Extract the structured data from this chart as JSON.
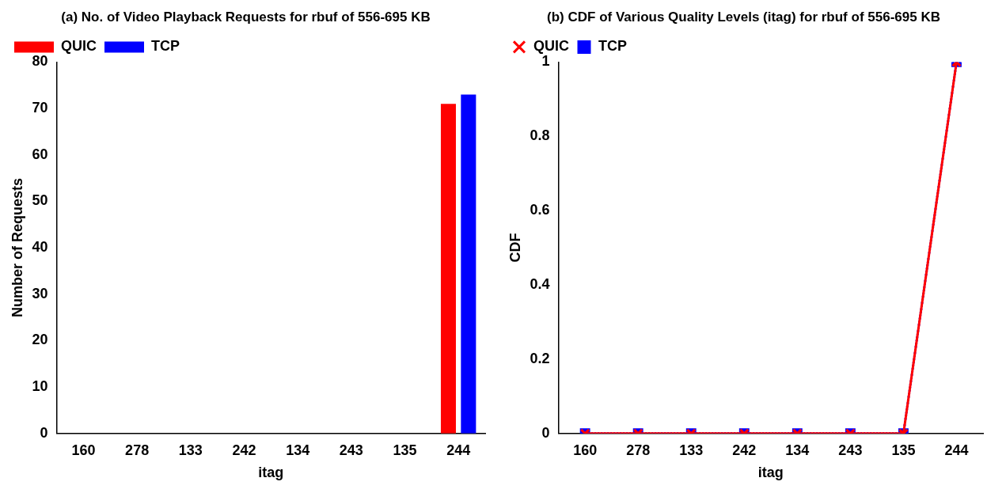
{
  "chart_data": [
    {
      "type": "bar",
      "title": "(a) No. of Video Playback Requests for rbuf of 556-695 KB",
      "xlabel": "itag",
      "ylabel": "Number of Requests",
      "categories": [
        "160",
        "278",
        "133",
        "242",
        "134",
        "243",
        "135",
        "244"
      ],
      "series": [
        {
          "name": "QUIC",
          "color": "#ff0000",
          "values": [
            0,
            0,
            0,
            0,
            0,
            0,
            0,
            71
          ]
        },
        {
          "name": "TCP",
          "color": "#0000ff",
          "values": [
            0,
            0,
            0,
            0,
            0,
            0,
            0,
            73
          ]
        }
      ],
      "ylim": [
        0,
        80
      ],
      "yticks": [
        0,
        10,
        20,
        30,
        40,
        50,
        60,
        70,
        80
      ],
      "grid": false,
      "legend": "top left"
    },
    {
      "type": "line",
      "title": "(b) CDF of Various Quality Levels (itag) for rbuf of 556-695 KB",
      "xlabel": "itag",
      "ylabel": "CDF",
      "categories": [
        "160",
        "278",
        "133",
        "242",
        "134",
        "243",
        "135",
        "244"
      ],
      "series": [
        {
          "name": "QUIC",
          "color": "#ff0000",
          "values": [
            0,
            0,
            0,
            0,
            0,
            0,
            0,
            1
          ],
          "marker": "cross",
          "line_style": "solid"
        },
        {
          "name": "TCP",
          "color": "#0000ff",
          "values": [
            0,
            0,
            0,
            0,
            0,
            0,
            0,
            1
          ],
          "marker": "square",
          "line_style": "dotted"
        }
      ],
      "ylim": [
        0,
        1
      ],
      "yticks": [
        0,
        0.2,
        0.4,
        0.6,
        0.8,
        1
      ],
      "grid": false,
      "legend": "top left"
    }
  ]
}
